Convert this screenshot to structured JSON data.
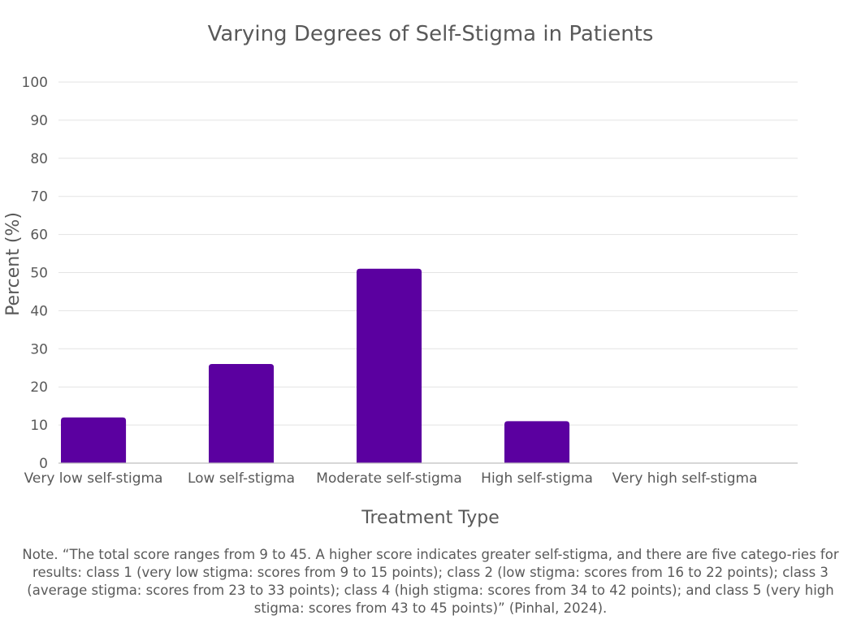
{
  "chart_data": {
    "type": "bar",
    "title": "Varying Degrees of Self-Stigma in Patients",
    "xlabel": "Treatment Type",
    "ylabel": "Percent (%)",
    "ylim": [
      0,
      100
    ],
    "yticks": [
      0,
      10,
      20,
      30,
      40,
      50,
      60,
      70,
      80,
      90,
      100
    ],
    "categories": [
      "Very low self-stigma",
      "Low self-stigma",
      "Moderate self-stigma",
      "High self-stigma",
      "Very high self-stigma"
    ],
    "values": [
      12,
      26,
      51,
      11,
      0
    ],
    "bar_color": "#5b00a0",
    "grid": true,
    "legend": "none"
  },
  "note": "Note. “The total score ranges from 9 to 45. A higher score indicates greater self-stigma, and there are five catego-ries for results: class 1 (very low stigma: scores from 9 to 15 points); class 2 (low stigma: scores from 16 to 22 points); class 3 (average stigma: scores from 23 to 33 points); class 4 (high stigma: scores from 34 to 42 points); and class 5 (very high stigma: scores from 43 to 45 points)” (Pinhal, 2024)."
}
